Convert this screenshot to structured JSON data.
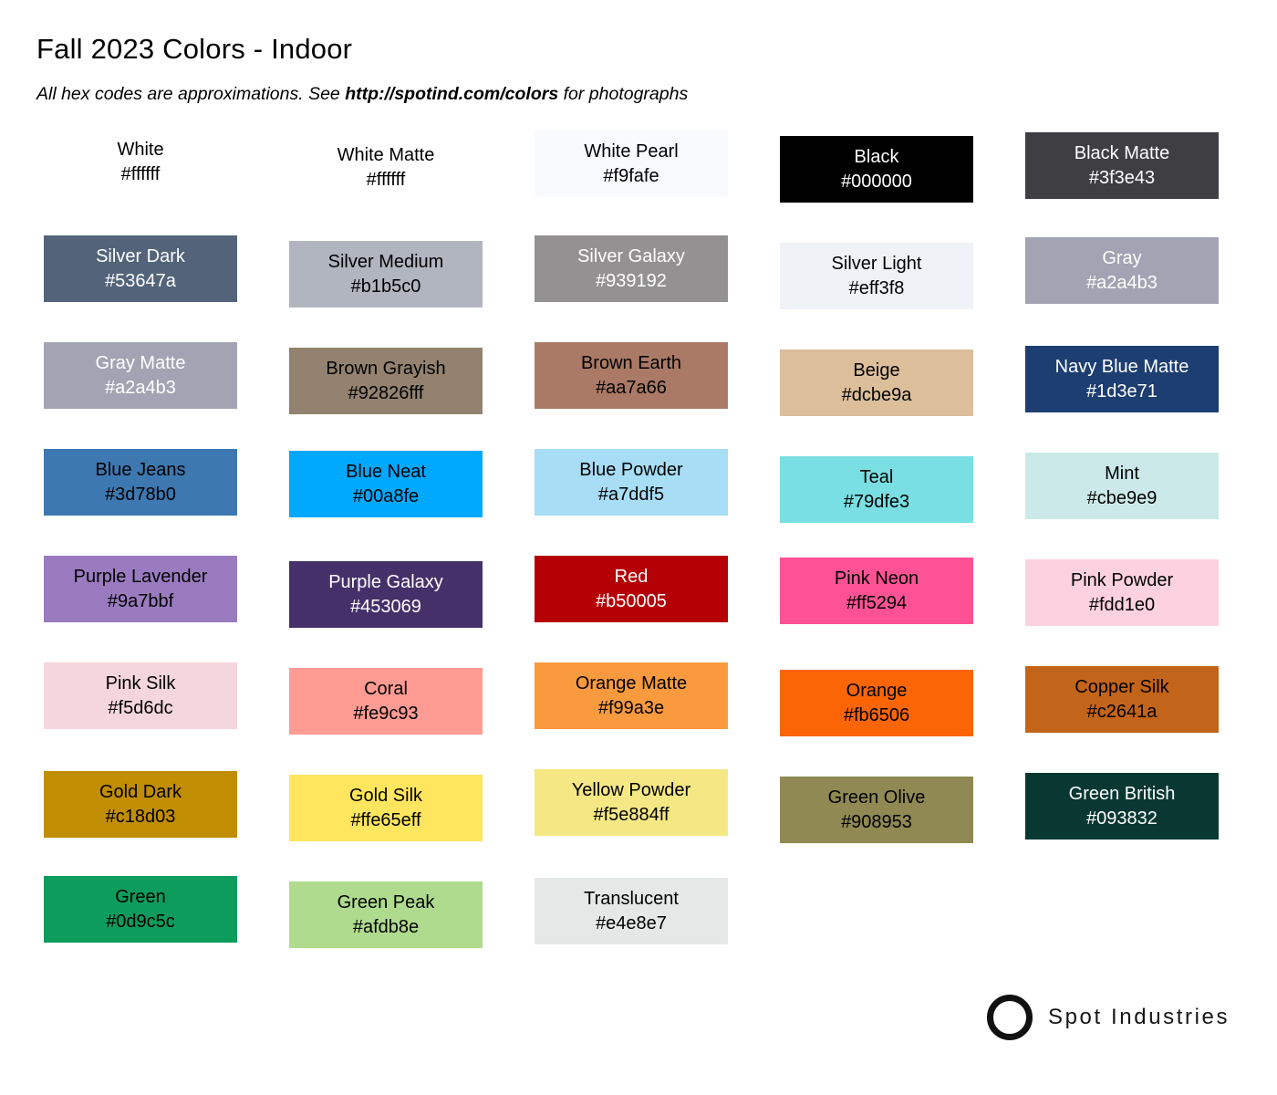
{
  "header": {
    "title": "Fall 2023 Colors - Indoor",
    "subtitle_prefix": "All hex codes are approximations. See ",
    "subtitle_link": "http://spotind.com/colors",
    "subtitle_suffix": " for photographs"
  },
  "footer": {
    "brand": "Spot Industries",
    "logo_icon": "circle-outline-icon",
    "logo_color": "#111111"
  },
  "grid": {
    "columns": 5,
    "swatches": [
      {
        "name": "White",
        "hex": "#ffffff",
        "bg": "#ffffff",
        "text": "#000000"
      },
      {
        "name": "White Matte",
        "hex": "#ffffff",
        "bg": "#ffffff",
        "text": "#000000"
      },
      {
        "name": "White Pearl",
        "hex": "#f9fafe",
        "bg": "#f9fafe",
        "text": "#000000"
      },
      {
        "name": "Black",
        "hex": "#000000",
        "bg": "#000000",
        "text": "#ffffff"
      },
      {
        "name": "Black Matte",
        "hex": "#3f3e43",
        "bg": "#3f3e43",
        "text": "#ffffff"
      },
      {
        "name": "Silver Dark",
        "hex": "#53647a",
        "bg": "#53647a",
        "text": "#ffffff"
      },
      {
        "name": "Silver Medium",
        "hex": "#b1b5c0",
        "bg": "#b1b5c0",
        "text": "#000000"
      },
      {
        "name": "Silver Galaxy",
        "hex": "#939192",
        "bg": "#939192",
        "text": "#ffffff"
      },
      {
        "name": "Silver Light",
        "hex": "#eff3f8",
        "bg": "#eff3f8",
        "text": "#000000"
      },
      {
        "name": "Gray",
        "hex": "#a2a4b3",
        "bg": "#a2a4b3",
        "text": "#ffffff"
      },
      {
        "name": "Gray Matte",
        "hex": "#a2a4b3",
        "bg": "#a2a4b3",
        "text": "#ffffff"
      },
      {
        "name": "Brown Grayish",
        "hex": "#92826fff",
        "bg": "#92826f",
        "text": "#000000"
      },
      {
        "name": "Brown Earth",
        "hex": "#aa7a66",
        "bg": "#aa7a66",
        "text": "#000000"
      },
      {
        "name": "Beige",
        "hex": "#dcbe9a",
        "bg": "#dcbe9a",
        "text": "#000000"
      },
      {
        "name": "Navy Blue Matte",
        "hex": "#1d3e71",
        "bg": "#1d3e71",
        "text": "#ffffff"
      },
      {
        "name": "Blue Jeans",
        "hex": "#3d78b0",
        "bg": "#3d78b0",
        "text": "#000000"
      },
      {
        "name": "Blue Neat",
        "hex": "#00a8fe",
        "bg": "#00a8fe",
        "text": "#000000"
      },
      {
        "name": "Blue Powder",
        "hex": "#a7ddf5",
        "bg": "#a7ddf5",
        "text": "#000000"
      },
      {
        "name": "Teal",
        "hex": "#79dfe3",
        "bg": "#79dfe3",
        "text": "#000000"
      },
      {
        "name": "Mint",
        "hex": "#cbe9e9",
        "bg": "#cbe9e9",
        "text": "#000000"
      },
      {
        "name": "Purple Lavender",
        "hex": "#9a7bbf",
        "bg": "#9a7bbf",
        "text": "#000000"
      },
      {
        "name": "Purple Galaxy",
        "hex": "#453069",
        "bg": "#453069",
        "text": "#ffffff"
      },
      {
        "name": "Red",
        "hex": "#b50005",
        "bg": "#b50005",
        "text": "#ffffff"
      },
      {
        "name": "Pink Neon",
        "hex": "#ff5294",
        "bg": "#ff5294",
        "text": "#000000"
      },
      {
        "name": "Pink Powder",
        "hex": "#fdd1e0",
        "bg": "#fdd1e0",
        "text": "#000000"
      },
      {
        "name": "Pink Silk",
        "hex": "#f5d6dc",
        "bg": "#f5d6dc",
        "text": "#000000"
      },
      {
        "name": "Coral",
        "hex": "#fe9c93",
        "bg": "#fe9c93",
        "text": "#000000"
      },
      {
        "name": "Orange Matte",
        "hex": "#f99a3e",
        "bg": "#f99a3e",
        "text": "#000000"
      },
      {
        "name": "Orange",
        "hex": "#fb6506",
        "bg": "#fb6506",
        "text": "#000000"
      },
      {
        "name": "Copper Silk",
        "hex": "#c2641a",
        "bg": "#c2641a",
        "text": "#000000"
      },
      {
        "name": "Gold Dark",
        "hex": "#c18d03",
        "bg": "#c18d03",
        "text": "#000000"
      },
      {
        "name": "Gold Silk",
        "hex": "#ffe65eff",
        "bg": "#ffe65e",
        "text": "#000000"
      },
      {
        "name": "Yellow Powder",
        "hex": "#f5e884ff",
        "bg": "#f5e884",
        "text": "#000000"
      },
      {
        "name": "Green Olive",
        "hex": "#908953",
        "bg": "#908953",
        "text": "#000000"
      },
      {
        "name": "Green British",
        "hex": "#093832",
        "bg": "#093832",
        "text": "#ffffff"
      },
      {
        "name": "Green",
        "hex": "#0d9c5c",
        "bg": "#0d9c5c",
        "text": "#000000"
      },
      {
        "name": "Green Peak",
        "hex": "#afdb8e",
        "bg": "#afdb8e",
        "text": "#000000"
      },
      {
        "name": "Translucent",
        "hex": "#e4e8e7",
        "bg": "#e4e8e7",
        "text": "#000000"
      }
    ]
  }
}
